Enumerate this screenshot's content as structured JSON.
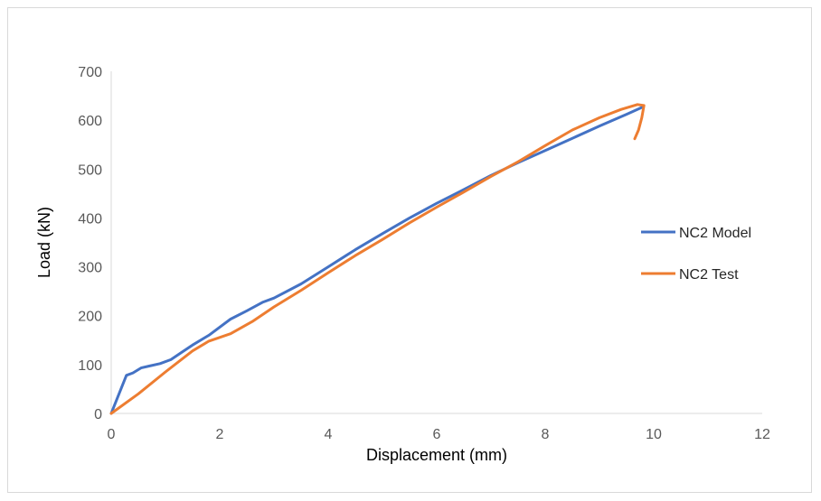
{
  "chart_data": {
    "type": "line",
    "title": "",
    "xlabel": "Displacement (mm)",
    "ylabel": "Load (kN)",
    "xlim": [
      0,
      12
    ],
    "ylim": [
      0,
      700
    ],
    "x_ticks": [
      "0",
      "2",
      "4",
      "6",
      "8",
      "10",
      "12"
    ],
    "y_ticks": [
      "0",
      "100",
      "200",
      "300",
      "400",
      "500",
      "600",
      "700"
    ],
    "grid": false,
    "legend_position": "right",
    "series": [
      {
        "name": "NC2 Model",
        "color": "#4472c4",
        "points": [
          [
            0,
            0
          ],
          [
            0.28,
            78
          ],
          [
            0.4,
            83
          ],
          [
            0.55,
            93
          ],
          [
            0.7,
            97
          ],
          [
            0.9,
            102
          ],
          [
            1.1,
            110
          ],
          [
            1.3,
            125
          ],
          [
            1.5,
            140
          ],
          [
            1.8,
            160
          ],
          [
            2.2,
            193
          ],
          [
            2.5,
            210
          ],
          [
            2.8,
            228
          ],
          [
            3.0,
            236
          ],
          [
            3.5,
            265
          ],
          [
            4.0,
            300
          ],
          [
            4.5,
            335
          ],
          [
            5.0,
            368
          ],
          [
            5.5,
            400
          ],
          [
            6.0,
            430
          ],
          [
            6.5,
            458
          ],
          [
            7.0,
            487
          ],
          [
            7.5,
            513
          ],
          [
            8.0,
            538
          ],
          [
            8.5,
            563
          ],
          [
            9.0,
            588
          ],
          [
            9.5,
            612
          ],
          [
            9.8,
            627
          ]
        ]
      },
      {
        "name": "NC2 Test",
        "color": "#ed7d31",
        "points": [
          [
            0,
            0
          ],
          [
            0.5,
            40
          ],
          [
            1.0,
            85
          ],
          [
            1.5,
            128
          ],
          [
            1.8,
            148
          ],
          [
            2.2,
            163
          ],
          [
            2.6,
            188
          ],
          [
            3.0,
            218
          ],
          [
            3.5,
            252
          ],
          [
            4.0,
            288
          ],
          [
            4.5,
            323
          ],
          [
            5.0,
            356
          ],
          [
            5.5,
            390
          ],
          [
            6.0,
            422
          ],
          [
            6.5,
            453
          ],
          [
            7.0,
            485
          ],
          [
            7.5,
            515
          ],
          [
            8.0,
            548
          ],
          [
            8.5,
            580
          ],
          [
            9.0,
            605
          ],
          [
            9.4,
            622
          ],
          [
            9.7,
            632
          ],
          [
            9.82,
            630
          ],
          [
            9.78,
            605
          ],
          [
            9.72,
            580
          ],
          [
            9.65,
            562
          ]
        ]
      }
    ]
  }
}
